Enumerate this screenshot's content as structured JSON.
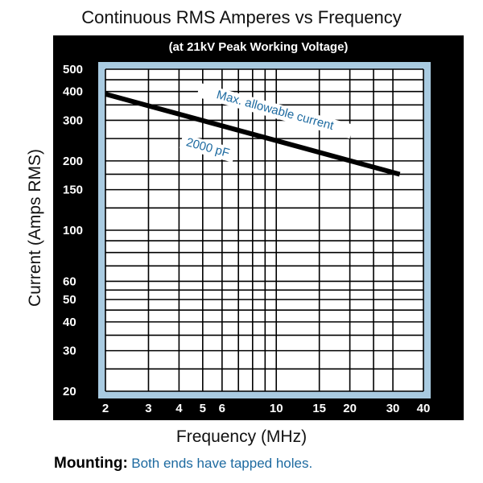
{
  "colors": {
    "frame": "#000000",
    "plot_border": "#a9cbe1",
    "plot_background": "#ffffff",
    "grid": "#000000",
    "series_line": "#000000",
    "annotation_text": "#1d6aa0",
    "footer_value": "#1d6aa0"
  },
  "chart_data": {
    "type": "line",
    "title": "Continuous RMS Amperes vs Frequency",
    "subtitle": "(at 21kV Peak Working Voltage)",
    "xlabel": "Frequency (MHz)",
    "ylabel": "Current (Amps RMS)",
    "x_scale": "log",
    "y_scale": "log",
    "xlim": [
      2,
      40
    ],
    "ylim": [
      20,
      500
    ],
    "x_ticks": [
      {
        "value": 2,
        "label": "2"
      },
      {
        "value": 3,
        "label": "3"
      },
      {
        "value": 4,
        "label": "4"
      },
      {
        "value": 5,
        "label": "5"
      },
      {
        "value": 6,
        "label": "6"
      },
      {
        "value": 10,
        "label": "10"
      },
      {
        "value": 15,
        "label": "15"
      },
      {
        "value": 20,
        "label": "20"
      },
      {
        "value": 30,
        "label": "30"
      },
      {
        "value": 40,
        "label": "40"
      }
    ],
    "x_grid": [
      2,
      3,
      4,
      5,
      6,
      7,
      8,
      9,
      10,
      15,
      20,
      25,
      30,
      40
    ],
    "y_ticks": [
      {
        "value": 20,
        "label": "20"
      },
      {
        "value": 30,
        "label": "30"
      },
      {
        "value": 40,
        "label": "40"
      },
      {
        "value": 50,
        "label": "50"
      },
      {
        "value": 60,
        "label": "60"
      },
      {
        "value": 100,
        "label": "100"
      },
      {
        "value": 150,
        "label": "150"
      },
      {
        "value": 200,
        "label": "200"
      },
      {
        "value": 300,
        "label": "300"
      },
      {
        "value": 400,
        "label": "400"
      },
      {
        "value": 500,
        "label": "500"
      }
    ],
    "y_grid": [
      20,
      25,
      30,
      35,
      40,
      45,
      50,
      55,
      60,
      70,
      80,
      90,
      100,
      125,
      150,
      175,
      200,
      250,
      300,
      350,
      400,
      450,
      500
    ],
    "grid": true,
    "series": [
      {
        "x": [
          2,
          32
        ],
        "y": [
          390,
          175
        ]
      }
    ],
    "annotations": [
      {
        "text": "Max. allowable current",
        "x": 9.8,
        "y": 320
      },
      {
        "text": "2000 pF",
        "x": 5.2,
        "y": 220
      }
    ]
  },
  "footer": {
    "label": "Mounting:",
    "value": "Both ends have tapped holes."
  }
}
